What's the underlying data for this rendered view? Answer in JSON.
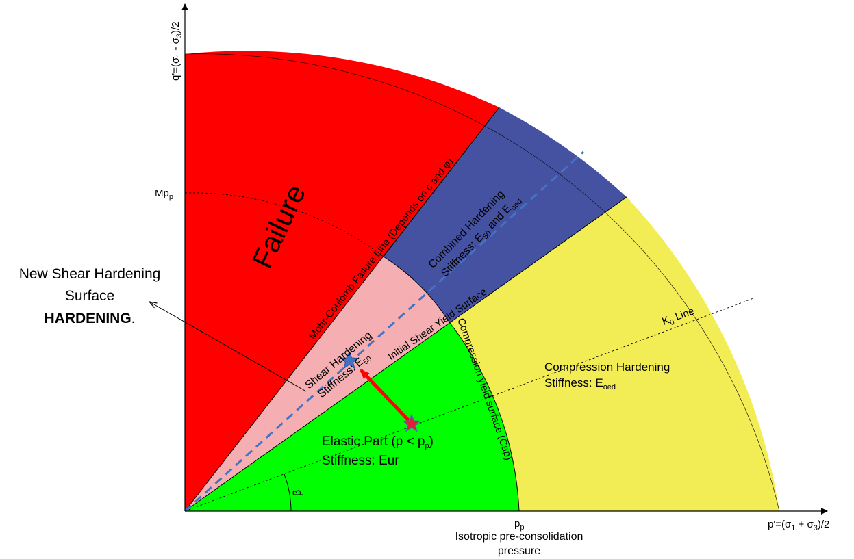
{
  "axes": {
    "y_label": "q'=(σ1 - σ3)/2",
    "x_label": "p'=(σ1 + σ3)/2",
    "y_tick": "Mpp",
    "x_tick": "pp",
    "x_tick_caption_line1": "Isotropic pre-consolidation",
    "x_tick_caption_line2": "pressure"
  },
  "regions": {
    "failure": "Failure",
    "elastic_line1": "Elastic Part (p < pp)",
    "elastic_line2": "Stiffness: Eur",
    "shear_line1": "Shear Hardening",
    "shear_line2": "Stiffness: E50",
    "combined_line1": "Combined Hardening",
    "combined_line2": "Stiffness: E50 and Eoed",
    "compression_line1": "Compression Hardening",
    "compression_line2": "Stiffness: Eoed"
  },
  "lines": {
    "mohr_coulomb": "Mohr-Coulomb Failure Line (Depends on c and φ)",
    "initial_shear": "Initial Shear Yield Surface",
    "cap": "Compression yield surface (Cap)",
    "k0": "K0 Line",
    "beta": "β"
  },
  "callout": {
    "line1": "New Shear Hardening",
    "line2": "Surface",
    "line3": "HARDENING",
    "line3_suffix": "."
  },
  "colors": {
    "failure": "#ff0000",
    "shear_hardening": "#f5aeb1",
    "combined_hardening": "#4552a2",
    "compression_hardening": "#f2ec55",
    "elastic": "#00ff00",
    "dashed_path": "#4472c4",
    "stress_arrow": "#ff0000",
    "initial_star": "#e0203a",
    "new_star": "#4472c4"
  }
}
